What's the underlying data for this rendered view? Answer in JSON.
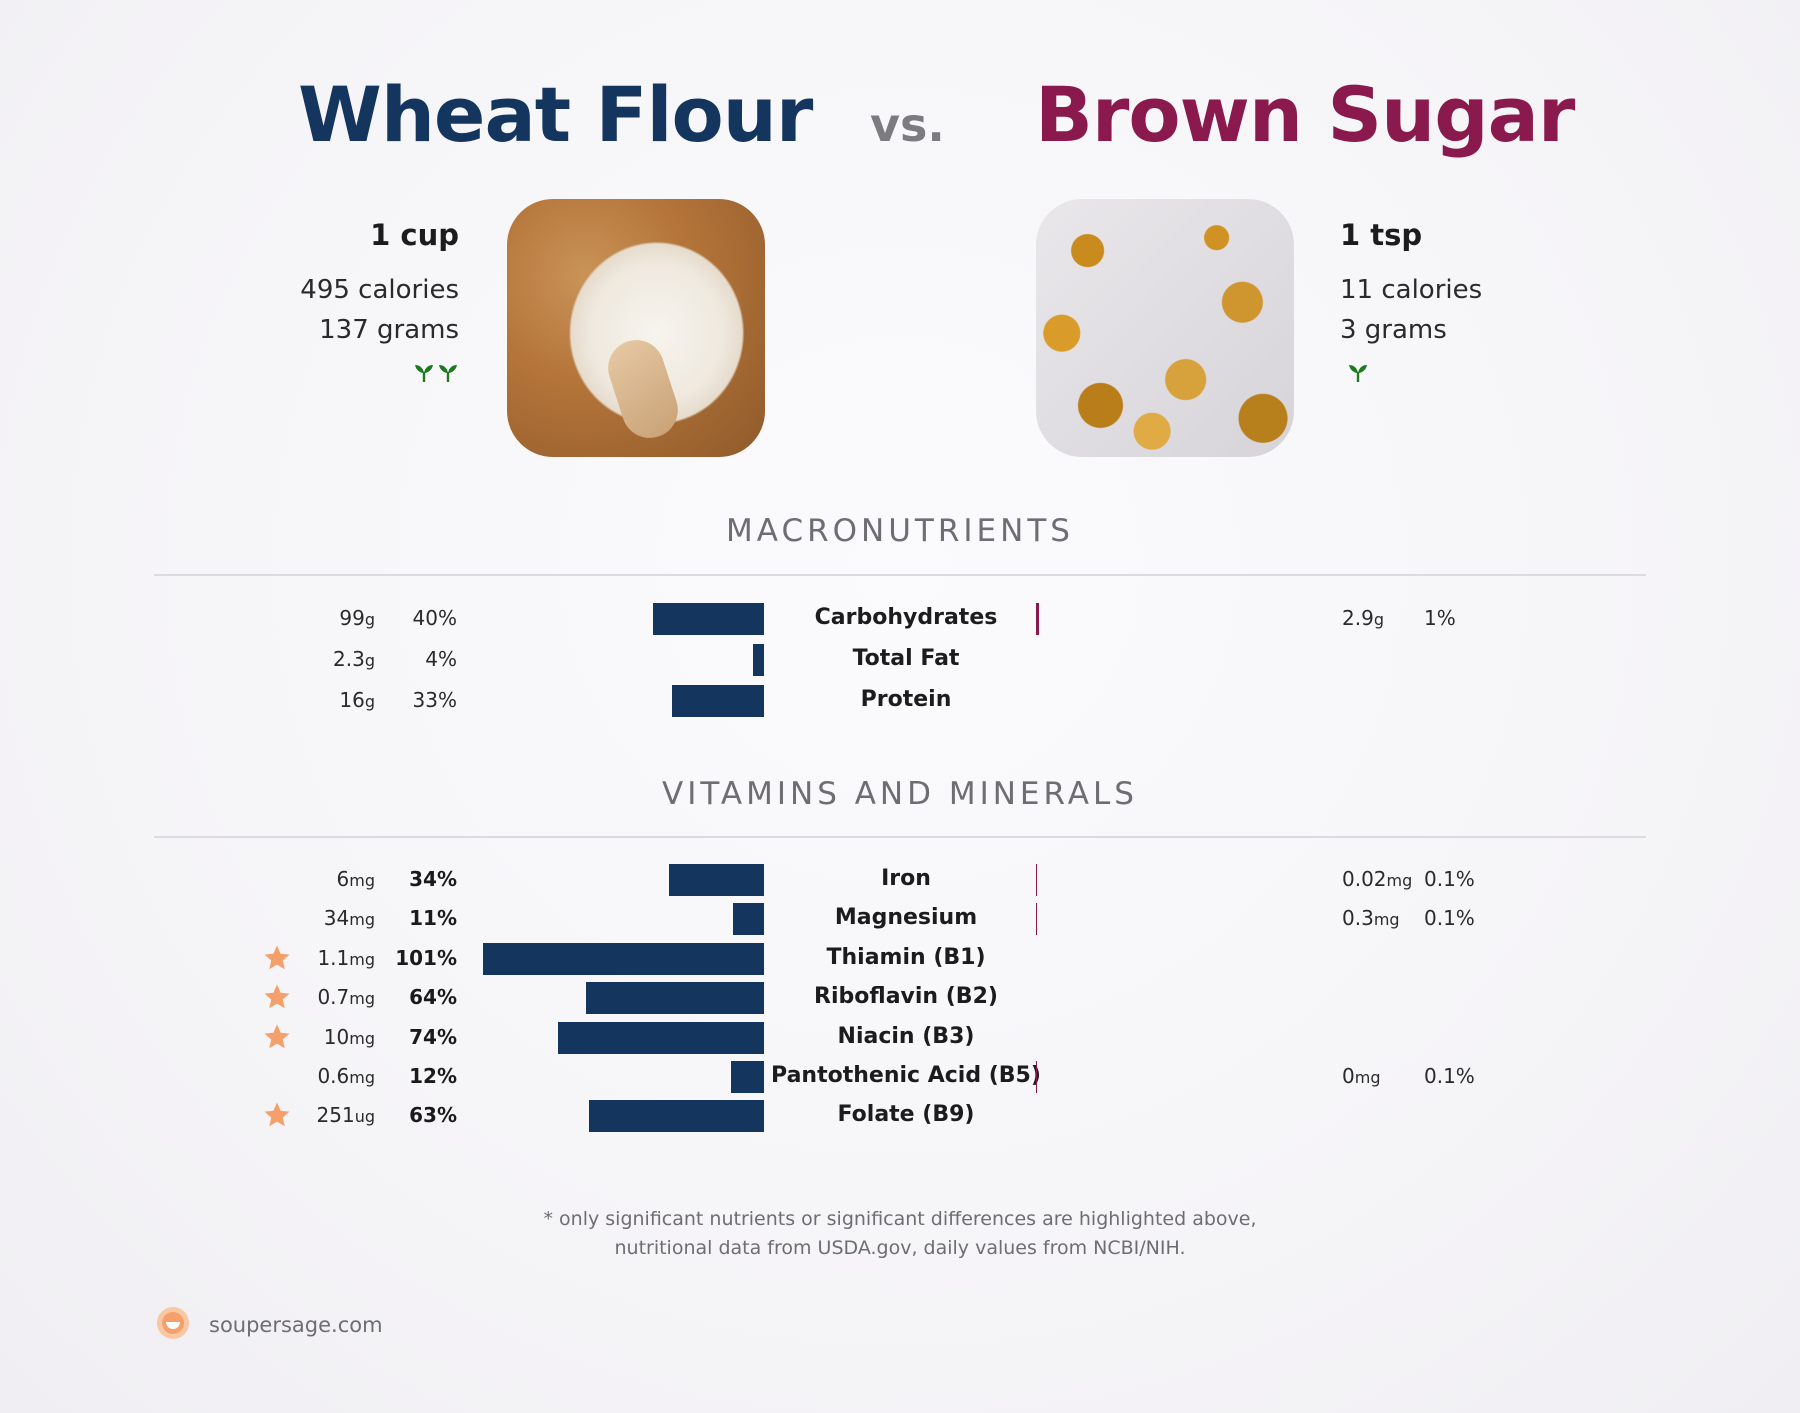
{
  "header": {
    "left_food": "Wheat Flour",
    "vs": "vs.",
    "right_food": "Brown Sugar"
  },
  "left_card": {
    "serving": "1 cup",
    "calories": "495 calories",
    "grams": "137 grams",
    "sprouts": 2,
    "image": "flour-bowl-photo"
  },
  "right_card": {
    "serving": "1 tsp",
    "calories": "11 calories",
    "grams": "3 grams",
    "sprouts": 1,
    "image": "brown-sugar-crystals-photo"
  },
  "sections": {
    "macros": "MACRONUTRIENTS",
    "vitamins": "VITAMINS AND MINERALS"
  },
  "colors": {
    "left": "#14355e",
    "right": "#8a1a4e",
    "star": "#f5a06a",
    "sprout": "#1f7a1f"
  },
  "chart_data": [
    {
      "type": "bar",
      "title": "MACRONUTRIENTS",
      "categories": [
        "Carbohydrates",
        "Total Fat",
        "Protein"
      ],
      "series": [
        {
          "name": "Wheat Flour",
          "amounts": [
            "99",
            "2.3",
            "16"
          ],
          "units": [
            "g",
            "g",
            "g"
          ],
          "values": [
            40,
            4,
            33
          ],
          "labels": [
            "40%",
            "4%",
            "33%"
          ]
        },
        {
          "name": "Brown Sugar",
          "amounts": [
            "2.9",
            "",
            ""
          ],
          "units": [
            "g",
            "",
            ""
          ],
          "values": [
            1,
            0,
            0
          ],
          "labels": [
            "1%",
            "",
            ""
          ]
        }
      ]
    },
    {
      "type": "bar",
      "title": "VITAMINS AND MINERALS",
      "categories": [
        "Iron",
        "Magnesium",
        "Thiamin (B1)",
        "Riboflavin (B2)",
        "Niacin (B3)",
        "Pantothenic Acid (B5)",
        "Folate (B9)"
      ],
      "series": [
        {
          "name": "Wheat Flour",
          "amounts": [
            "6",
            "34",
            "1.1",
            "0.7",
            "10",
            "0.6",
            "251"
          ],
          "units": [
            "mg",
            "mg",
            "mg",
            "mg",
            "mg",
            "mg",
            "ug"
          ],
          "values": [
            34,
            11,
            101,
            64,
            74,
            12,
            63
          ],
          "labels": [
            "34%",
            "11%",
            "101%",
            "64%",
            "74%",
            "12%",
            "63%"
          ],
          "starred": [
            false,
            false,
            true,
            true,
            true,
            false,
            true
          ]
        },
        {
          "name": "Brown Sugar",
          "amounts": [
            "0.02",
            "0.3",
            "",
            "",
            "",
            "0",
            ""
          ],
          "units": [
            "mg",
            "mg",
            "",
            "",
            "",
            "mg",
            ""
          ],
          "values": [
            0.1,
            0.1,
            0,
            0,
            0,
            0.1,
            0
          ],
          "labels": [
            "0.1%",
            "0.1%",
            "",
            "",
            "",
            "0.1%",
            ""
          ]
        }
      ]
    }
  ],
  "footnote": {
    "line1": "* only significant nutrients or significant differences are highlighted above,",
    "line2": "nutritional data from USDA.gov, daily values from NCBI/NIH."
  },
  "brand": {
    "text": "soupersage.com",
    "logo": "soupersage-logo-icon"
  }
}
